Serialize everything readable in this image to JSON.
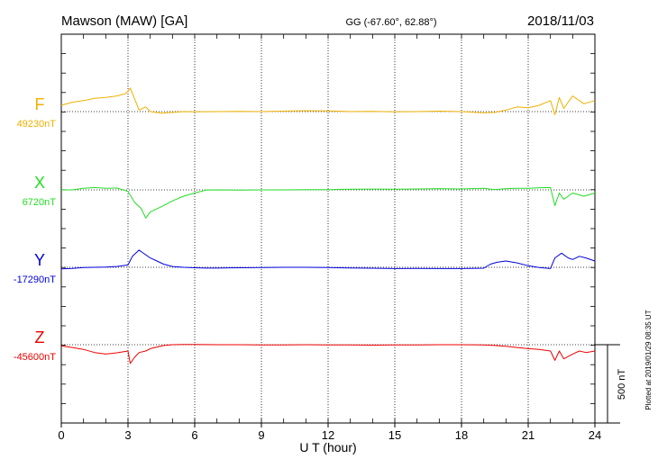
{
  "header": {
    "station": "Mawson (MAW)  [GA]",
    "coords": "GG (-67.60°,  62.88°)",
    "date": "2018/11/03"
  },
  "plotted_note": "Plotted at 2019/01/29 08:35 UT",
  "scale_label": "500 nT",
  "chart_data": {
    "type": "line",
    "xlabel": "U T (hour)",
    "xlim": [
      0,
      24
    ],
    "xticks": [
      0,
      3,
      6,
      9,
      12,
      15,
      18,
      21,
      24
    ],
    "grid": "dotted vertical lines every 3 hours; dotted baseline per component",
    "scale_bar_nT": 500,
    "series": [
      {
        "name": "F",
        "baseline_label": "49230nT",
        "baseline": 49230,
        "color": "#f0b000",
        "x": [
          0,
          0.5,
          1,
          1.5,
          2,
          2.5,
          2.9,
          3.1,
          3.3,
          3.5,
          3.8,
          4,
          4.5,
          5,
          5.5,
          6,
          7,
          8,
          9,
          10,
          11,
          12,
          13,
          14,
          15,
          16,
          17,
          18,
          19,
          19.5,
          20,
          20.5,
          21,
          21.5,
          22,
          22.2,
          22.4,
          22.6,
          23,
          23.5,
          24
        ],
        "y": [
          49270,
          49290,
          49300,
          49315,
          49320,
          49330,
          49345,
          49380,
          49310,
          49240,
          49260,
          49230,
          49220,
          49225,
          49230,
          49228,
          49230,
          49232,
          49230,
          49233,
          49236,
          49234,
          49230,
          49232,
          49228,
          49230,
          49233,
          49230,
          49222,
          49225,
          49240,
          49260,
          49255,
          49270,
          49300,
          49210,
          49320,
          49250,
          49330,
          49280,
          49300
        ]
      },
      {
        "name": "X",
        "baseline_label": "6720nT",
        "baseline": 6720,
        "color": "#22dd22",
        "x": [
          0,
          0.5,
          1,
          1.5,
          2,
          2.5,
          3,
          3.3,
          3.6,
          3.8,
          4,
          4.3,
          4.6,
          5,
          5.5,
          6,
          6.5,
          7,
          8,
          9,
          10,
          11,
          12,
          13,
          14,
          15,
          16,
          17,
          18,
          19,
          19.5,
          20,
          20.5,
          21,
          21.5,
          22,
          22.2,
          22.4,
          22.6,
          23,
          23.5,
          24
        ],
        "y": [
          6720,
          6720,
          6730,
          6735,
          6730,
          6732,
          6710,
          6640,
          6600,
          6540,
          6580,
          6600,
          6620,
          6650,
          6680,
          6700,
          6718,
          6720,
          6718,
          6720,
          6720,
          6722,
          6722,
          6724,
          6725,
          6724,
          6726,
          6728,
          6726,
          6730,
          6722,
          6728,
          6730,
          6730,
          6734,
          6735,
          6620,
          6700,
          6660,
          6700,
          6680,
          6700
        ]
      },
      {
        "name": "Y",
        "baseline_label": "-17290nT",
        "baseline": -17290,
        "color": "#0000dd",
        "x": [
          0,
          0.5,
          1,
          1.5,
          2,
          2.5,
          3,
          3.2,
          3.5,
          3.8,
          4,
          4.3,
          4.6,
          5,
          5.5,
          6,
          6.5,
          7,
          8,
          9,
          10,
          11,
          12,
          13,
          14,
          15,
          16,
          17,
          18,
          19,
          19.3,
          19.6,
          20,
          20.5,
          21,
          21.5,
          22,
          22.2,
          22.5,
          22.8,
          23,
          23.3,
          23.6,
          24
        ],
        "y": [
          -17300,
          -17297,
          -17292,
          -17290,
          -17288,
          -17285,
          -17275,
          -17220,
          -17180,
          -17210,
          -17230,
          -17250,
          -17270,
          -17285,
          -17290,
          -17293,
          -17295,
          -17295,
          -17293,
          -17292,
          -17290,
          -17290,
          -17292,
          -17294,
          -17296,
          -17298,
          -17297,
          -17298,
          -17298,
          -17296,
          -17270,
          -17258,
          -17250,
          -17262,
          -17280,
          -17292,
          -17298,
          -17230,
          -17200,
          -17230,
          -17240,
          -17220,
          -17230,
          -17250
        ]
      },
      {
        "name": "Z",
        "baseline_label": "-45600nT",
        "baseline": -45600,
        "color": "#ee0000",
        "x": [
          0,
          0.5,
          1,
          1.5,
          2,
          2.5,
          3,
          3.1,
          3.3,
          3.5,
          3.8,
          4,
          4.3,
          4.6,
          5,
          5.5,
          6,
          7,
          8,
          9,
          10,
          11,
          12,
          13,
          14,
          15,
          16,
          17,
          18,
          19,
          19.5,
          20,
          20.5,
          21,
          21.5,
          22,
          22.2,
          22.4,
          22.6,
          23,
          23.3,
          23.6,
          24
        ],
        "y": [
          -45608,
          -45618,
          -45630,
          -45650,
          -45660,
          -45652,
          -45640,
          -45720,
          -45680,
          -45650,
          -45640,
          -45625,
          -45615,
          -45605,
          -45600,
          -45598,
          -45598,
          -45600,
          -45600,
          -45602,
          -45601,
          -45600,
          -45602,
          -45601,
          -45603,
          -45602,
          -45601,
          -45600,
          -45600,
          -45602,
          -45605,
          -45610,
          -45618,
          -45625,
          -45630,
          -45640,
          -45700,
          -45640,
          -45690,
          -45660,
          -45640,
          -45650,
          -45640
        ]
      }
    ]
  }
}
